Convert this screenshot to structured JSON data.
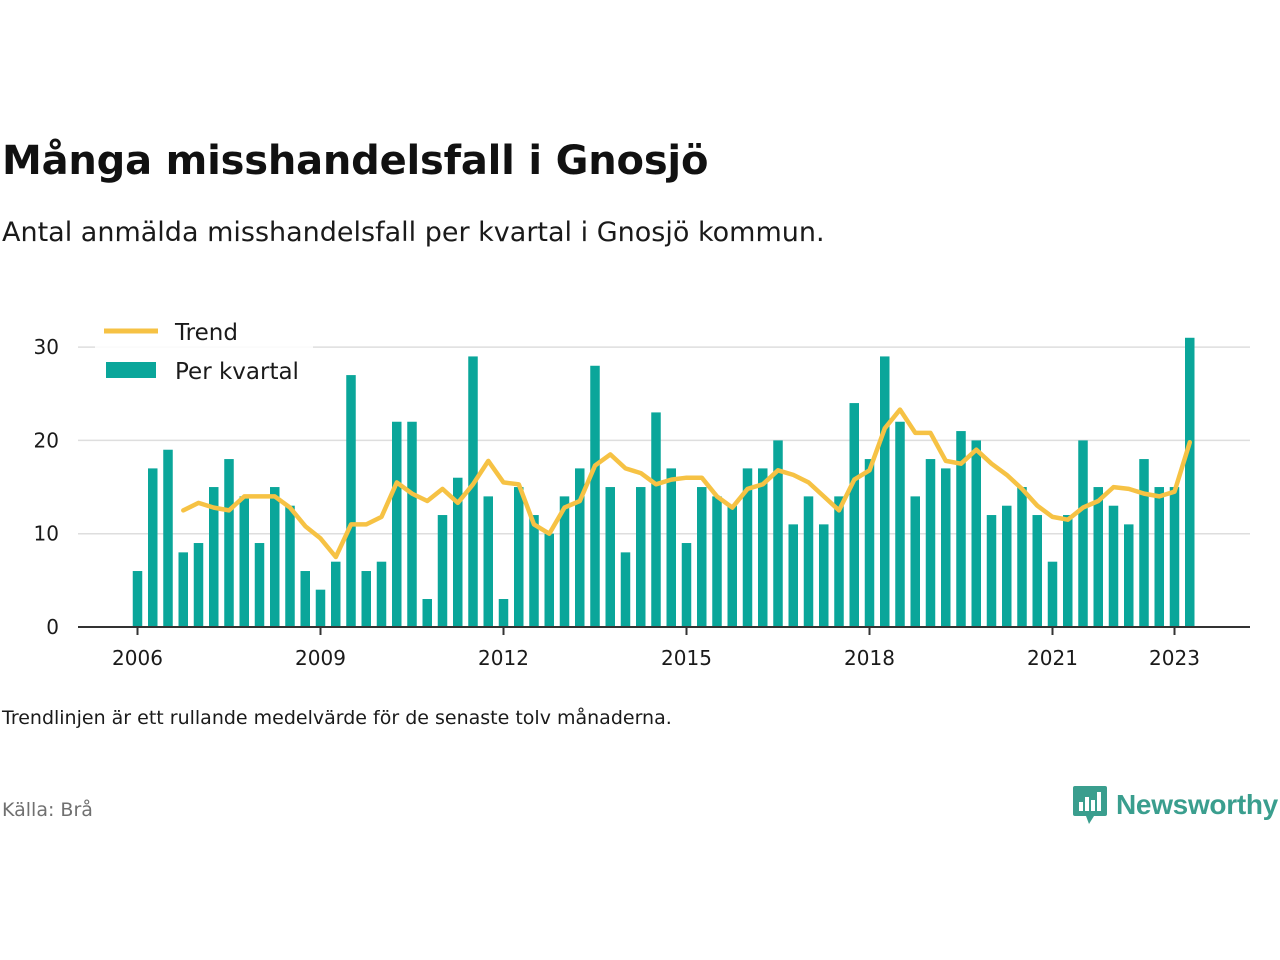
{
  "title": "Många misshandelsfall i Gnosjö",
  "subtitle": "Antal anmälda misshandelsfall per kvartal i Gnosjö kommun.",
  "note": "Trendlinjen är ett rullande medelvärde för de senaste tolv månaderna.",
  "source": "Källa: Brå",
  "brand": {
    "name": "Newsworthy",
    "icon": "newsworthy-logo-icon",
    "color": "#3a9e8e"
  },
  "chart_data": {
    "type": "bar",
    "start_year": 2006,
    "x_ticks": [
      2006,
      2009,
      2012,
      2015,
      2018,
      2021,
      2023
    ],
    "y_ticks": [
      0,
      10,
      20,
      30
    ],
    "ylim": [
      0,
      31
    ],
    "grid": true,
    "legend_position": "top-left",
    "legend": [
      {
        "label": "Trend",
        "kind": "line",
        "color": "#f6c244"
      },
      {
        "label": "Per kvartal",
        "kind": "bar",
        "color": "#0aa69a"
      }
    ],
    "series": [
      {
        "name": "Per kvartal",
        "type": "bar",
        "color": "#0aa69a",
        "values": [
          6,
          17,
          19,
          8,
          9,
          15,
          18,
          14,
          9,
          15,
          13,
          6,
          4,
          7,
          27,
          6,
          7,
          22,
          22,
          3,
          12,
          16,
          29,
          14,
          3,
          15,
          12,
          10,
          14,
          17,
          28,
          15,
          8,
          15,
          23,
          17,
          9,
          15,
          14,
          13,
          17,
          17,
          20,
          11,
          14,
          11,
          14,
          24,
          18,
          29,
          22,
          14,
          18,
          17,
          21,
          20,
          12,
          13,
          15,
          12,
          7,
          12,
          20,
          15,
          13,
          11,
          18,
          15,
          15,
          31
        ]
      },
      {
        "name": "Trend",
        "type": "line",
        "color": "#f6c244",
        "start_index": 3,
        "values": [
          12.5,
          13.3,
          12.8,
          12.5,
          14.0,
          14.0,
          14.0,
          12.8,
          10.8,
          9.5,
          7.5,
          11.0,
          11.0,
          11.8,
          15.5,
          14.3,
          13.5,
          14.8,
          13.3,
          15.3,
          17.8,
          15.5,
          15.3,
          11.0,
          10.0,
          12.8,
          13.5,
          17.3,
          18.5,
          17.0,
          16.5,
          15.3,
          15.8,
          16.0,
          16.0,
          14.0,
          12.8,
          14.8,
          15.3,
          16.8,
          16.3,
          15.5,
          14.0,
          12.5,
          15.8,
          16.8,
          21.3,
          23.3,
          20.8,
          20.8,
          17.8,
          17.5,
          19.0,
          17.5,
          16.3,
          14.8,
          13.0,
          11.8,
          11.5,
          12.8,
          13.5,
          15.0,
          14.8,
          14.3,
          14.0,
          14.5,
          19.8
        ]
      }
    ]
  }
}
